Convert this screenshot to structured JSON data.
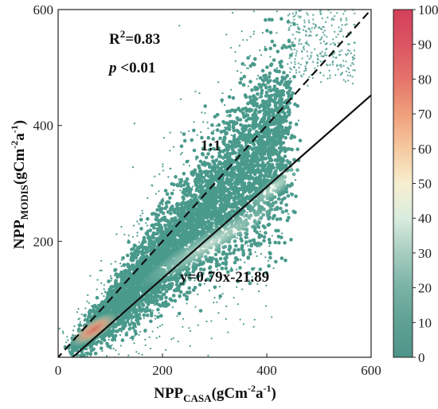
{
  "chart_data": {
    "type": "scatter",
    "title": "",
    "xlabel": {
      "main": "NPP",
      "sub": "CASA",
      "unit_open": "(gCm",
      "exp1": "-2",
      "mid": "a",
      "exp2": "-1",
      "unit_close": ")"
    },
    "ylabel": {
      "main": "NPP",
      "sub": "MODIS",
      "unit_open": "(gCm",
      "exp1": "-2",
      "mid": "a",
      "exp2": "-1",
      "unit_close": ")"
    },
    "xlim": [
      0,
      600
    ],
    "ylim": [
      0,
      600
    ],
    "x_ticks": [
      "0",
      "200",
      "400",
      "600"
    ],
    "y_ticks": [
      "200",
      "400",
      "600"
    ],
    "grid": false,
    "annotations": {
      "r2_base": "R",
      "r2_exp": "2",
      "r2_rest": "=0.83",
      "p_italic": "p",
      "p_rest": " <0.01",
      "one_to_one": "1:1",
      "fit_eq": "y=0.79x-21.89"
    },
    "lines": [
      {
        "name": "1:1",
        "style": "dashed",
        "slope": 1.0,
        "intercept": 0
      },
      {
        "name": "fit",
        "style": "solid",
        "slope": 0.79,
        "intercept": -21.89
      }
    ],
    "density_colorbar": {
      "min": 0,
      "max": 100,
      "ticks": [
        "0",
        "10",
        "20",
        "30",
        "40",
        "50",
        "60",
        "70",
        "80",
        "90",
        "100"
      ],
      "colors": [
        "#4f9489",
        "#5fa194",
        "#79b3a5",
        "#a6cdbf",
        "#d9ecdf",
        "#f7efd0",
        "#f6c99f",
        "#ef9f7b",
        "#e5746a",
        "#db5563",
        "#d33f5a"
      ]
    },
    "point_color": "#4a9a8c"
  }
}
